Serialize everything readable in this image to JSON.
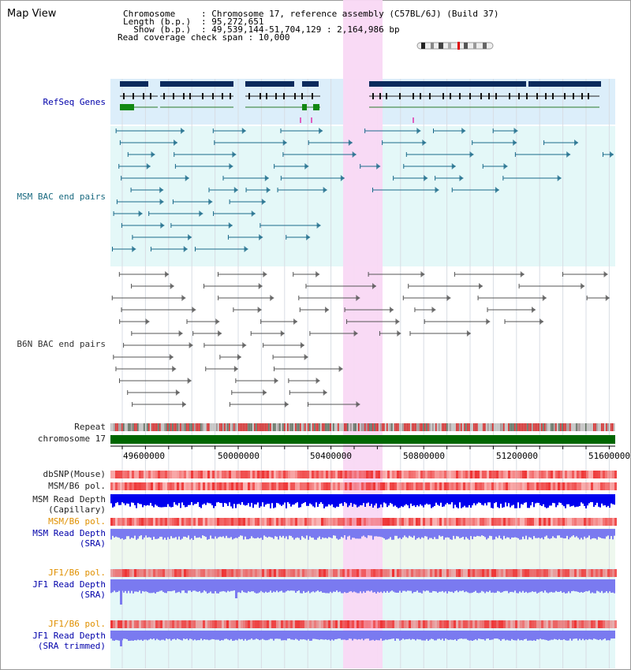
{
  "app_title": "Map View",
  "header": {
    "chromosome_key": "Chromosome",
    "chromosome_val": ": Chromosome 17, reference assembly (C57BL/6J) (Build 37)",
    "length_key": "Length (b.p.)",
    "length_val": ": 95,272,651",
    "show_key": "  Show (b.p.)",
    "show_val": ": 49,539,144-51,704,129 : 2,164,986 bp",
    "coverage": "Read coverage check span : 10,000"
  },
  "tracks": {
    "refseq": "RefSeq Genes",
    "msm_bac": "MSM BAC end pairs",
    "b6n_bac": "B6N BAC end pairs",
    "repeat": "Repeat",
    "chromosome": "chromosome 17",
    "dbsnp": "dbSNP(Mouse)",
    "msm_b6_pol_1": "MSM/B6 pol.",
    "msm_read_depth_cap_1": "MSM Read Depth",
    "msm_read_depth_cap_2": "(Capillary)",
    "msm_b6_pol_2": "MSM/B6 pol.",
    "msm_read_depth_sra_1": "MSM Read Depth",
    "msm_read_depth_sra_2": "(SRA)",
    "jf1_b6_pol_1": "JF1/B6 pol.",
    "jf1_read_depth_sra_1": "JF1 Read Depth",
    "jf1_read_depth_sra_2": "(SRA)",
    "jf1_b6_pol_2": "JF1/B6 pol.",
    "jf1_read_depth_trim_1": "JF1 Read Depth",
    "jf1_read_depth_trim_2": "(SRA trimmed)"
  },
  "axis_ticks": [
    "49600000",
    "50000000",
    "50400000",
    "50800000",
    "51200000",
    "51600000"
  ],
  "colors": {
    "refseq_bg": "#dceefa",
    "msm_bg": "#e4f8f8",
    "highlight": "#f9d8f4",
    "gene": "#0a2a5c",
    "msm_line": "#1a6a8a",
    "b6n_line": "#555555",
    "chromosome": "#006600",
    "snp_red": "#ee3333",
    "depth_blue": "#0000ee",
    "depth_light": "#7a7af0"
  }
}
